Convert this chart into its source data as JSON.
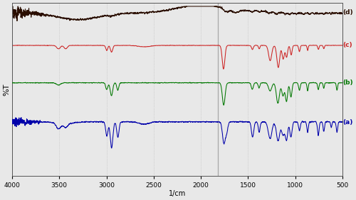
{
  "title": "",
  "xlabel": "1/cm",
  "ylabel": "%T",
  "xlim": [
    4000,
    500
  ],
  "bg_color": "#e8e8e8",
  "grid_color": "#bbbbbb",
  "labels": [
    "(a)",
    "(b)",
    "(c)",
    "(d)"
  ],
  "colors": [
    "#0000aa",
    "#007700",
    "#cc2222",
    "#2a0e00"
  ],
  "xticks": [
    4000,
    3500,
    3000,
    2500,
    2000,
    1500,
    1000,
    500
  ],
  "vline_x": 1820,
  "trace_offsets": [
    0.04,
    0.33,
    0.57,
    0.78
  ],
  "trace_scales": [
    0.28,
    0.22,
    0.2,
    0.18
  ]
}
